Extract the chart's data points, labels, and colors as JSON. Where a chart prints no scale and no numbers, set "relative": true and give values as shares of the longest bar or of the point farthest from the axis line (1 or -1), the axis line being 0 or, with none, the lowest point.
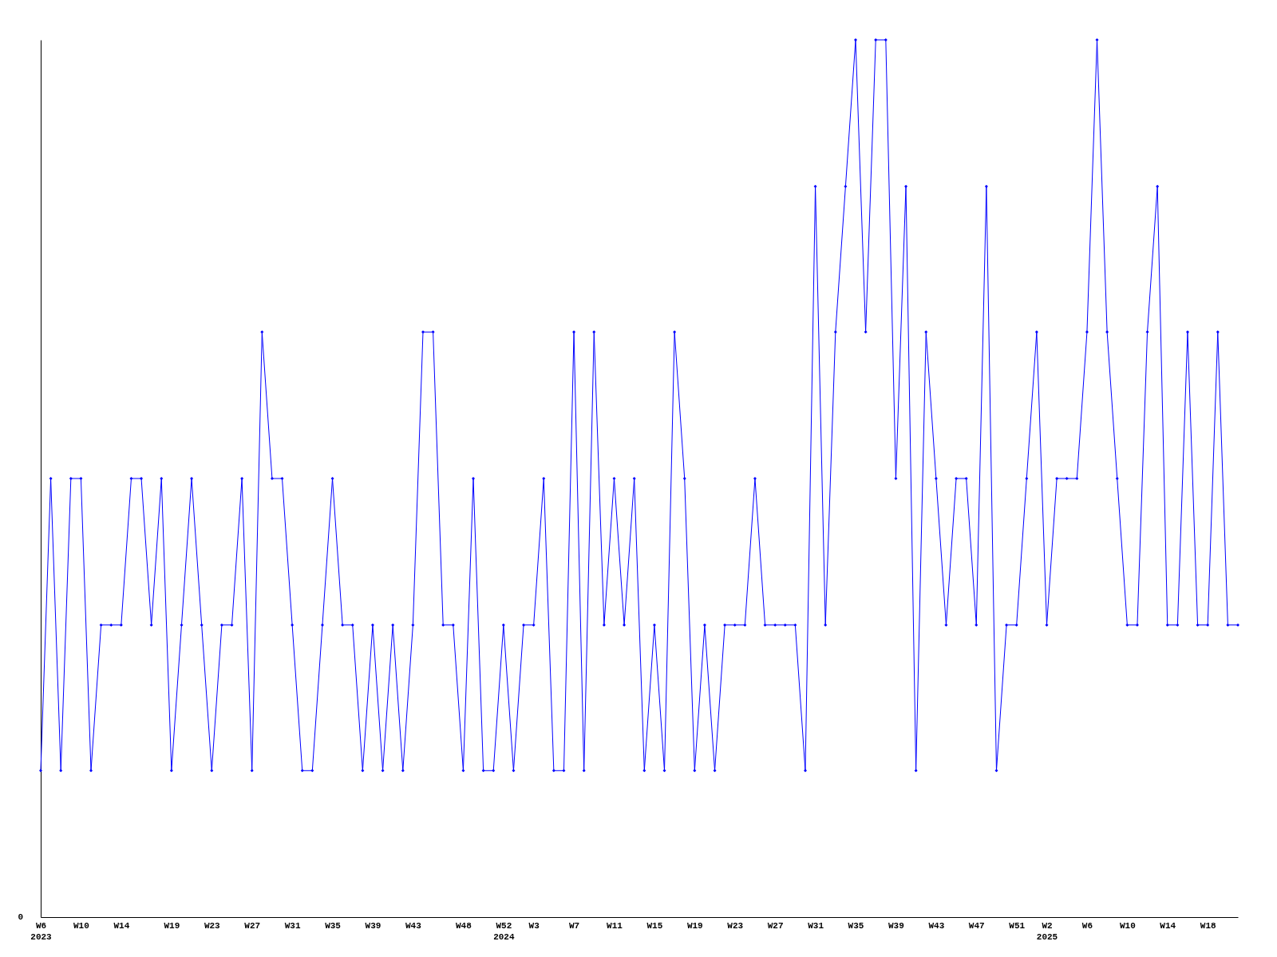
{
  "chart_data": {
    "type": "line",
    "relative": true,
    "marker": "diamond",
    "line_style": "solid",
    "categories": [
      "W6\n2023",
      null,
      null,
      null,
      "W10",
      null,
      null,
      null,
      "W14",
      null,
      null,
      null,
      null,
      "W19",
      null,
      null,
      null,
      "W23",
      null,
      null,
      null,
      "W27",
      null,
      null,
      null,
      "W31",
      null,
      null,
      null,
      "W35",
      null,
      null,
      null,
      "W39",
      null,
      null,
      null,
      "W43",
      null,
      null,
      null,
      null,
      "W48",
      null,
      null,
      null,
      "W52\n2024",
      null,
      null,
      "W3",
      null,
      null,
      null,
      "W7",
      null,
      null,
      null,
      "W11",
      null,
      null,
      null,
      "W15",
      null,
      null,
      null,
      "W19",
      null,
      null,
      null,
      "W23",
      null,
      null,
      null,
      "W27",
      null,
      null,
      null,
      "W31",
      null,
      null,
      null,
      "W35",
      null,
      null,
      null,
      "W39",
      null,
      null,
      null,
      "W43",
      null,
      null,
      null,
      "W47",
      null,
      null,
      null,
      "W51",
      null,
      null,
      "W2\n2025",
      null,
      null,
      null,
      "W6",
      null,
      null,
      null,
      "W10",
      null,
      null,
      null,
      "W14",
      null,
      null,
      null,
      "W18",
      null,
      null,
      null
    ],
    "annotations": [
      "0"
    ],
    "series": [
      {
        "color": "#0000ff",
        "values": [
          0.167,
          0.5,
          0.167,
          0.5,
          0.5,
          0.167,
          0.333,
          0.333,
          0.333,
          0.5,
          0.5,
          0.333,
          0.5,
          0.167,
          0.333,
          0.5,
          0.333,
          0.167,
          0.333,
          0.333,
          0.5,
          0.167,
          0.667,
          0.5,
          0.5,
          0.333,
          0.167,
          0.167,
          0.333,
          0.5,
          0.333,
          0.333,
          0.167,
          0.333,
          0.167,
          0.333,
          0.167,
          0.333,
          0.667,
          0.667,
          0.333,
          0.333,
          0.167,
          0.5,
          0.167,
          0.167,
          0.333,
          0.167,
          0.333,
          0.333,
          0.5,
          0.167,
          0.167,
          0.667,
          0.167,
          0.667,
          0.333,
          0.5,
          0.333,
          0.5,
          0.167,
          0.333,
          0.167,
          0.667,
          0.5,
          0.167,
          0.333,
          0.167,
          0.333,
          0.333,
          0.333,
          0.5,
          0.333,
          0.333,
          0.333,
          0.333,
          0.167,
          0.833,
          0.333,
          0.667,
          0.833,
          1,
          0.667,
          1,
          1,
          0.5,
          0.833,
          0.167,
          0.667,
          0.5,
          0.333,
          0.5,
          0.5,
          0.333,
          0.833,
          0.167,
          0.333,
          0.333,
          0.5,
          0.667,
          0.333,
          0.5,
          0.5,
          0.5,
          0.667,
          1,
          0.667,
          0.5,
          0.333,
          0.333,
          0.667,
          0.833,
          0.333,
          0.333,
          0.667,
          0.333,
          0.333,
          0.667,
          0.333,
          0.333
        ]
      }
    ]
  }
}
